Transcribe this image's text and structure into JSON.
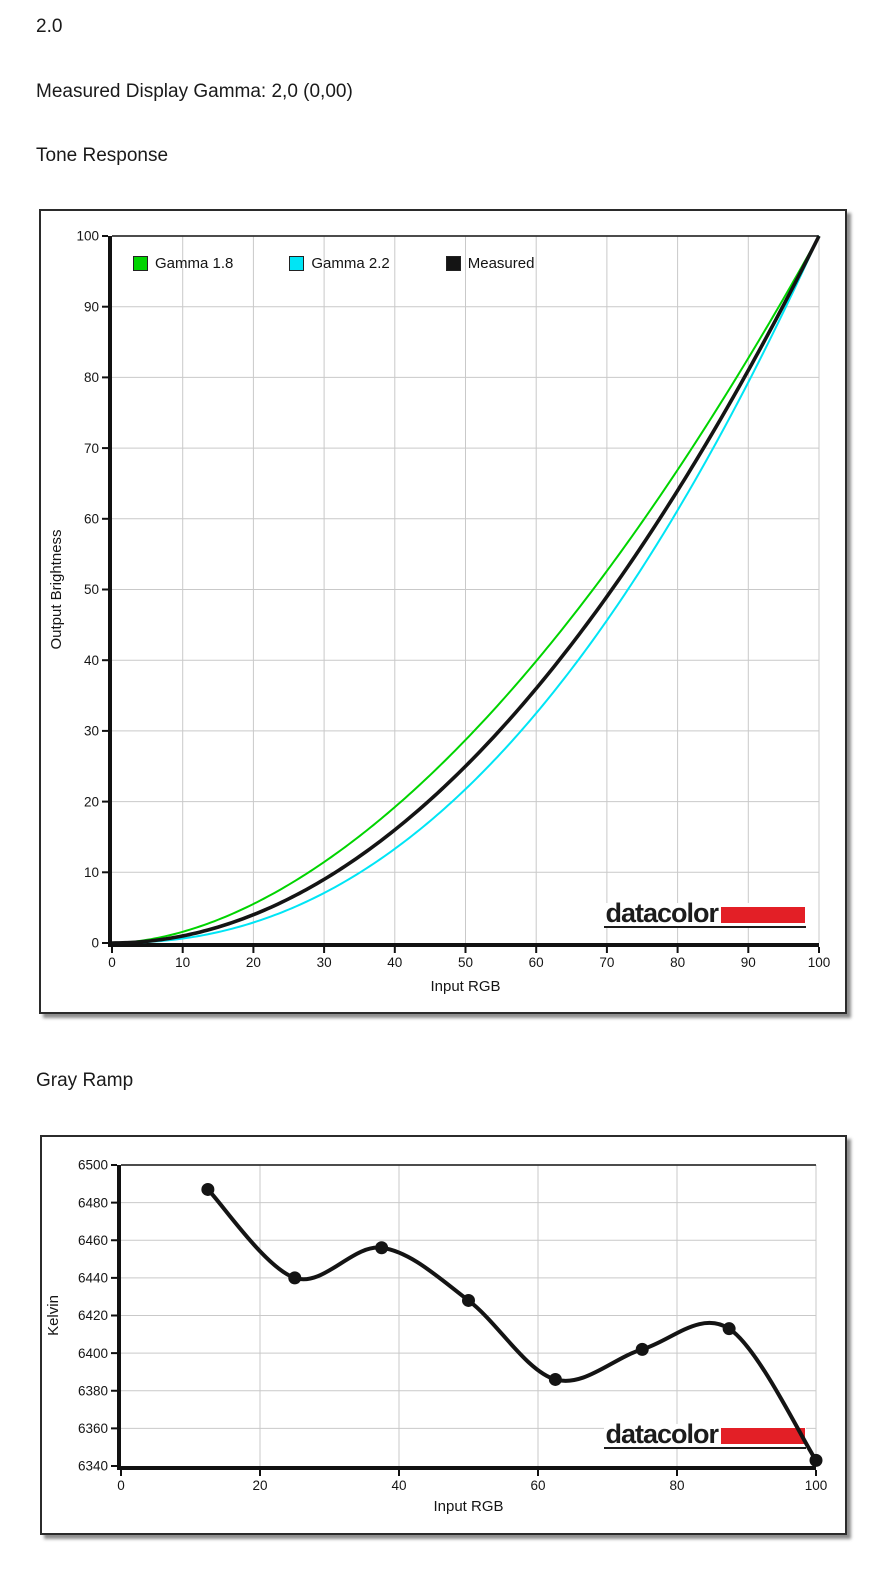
{
  "page": {
    "top_value": "2.0",
    "measured_gamma_line": "Measured Display Gamma: 2,0 (0,00)",
    "section1_heading": "Tone Response",
    "section2_heading": "Gray Ramp"
  },
  "brand": {
    "name": "datacolor",
    "red": "#e31f26",
    "text_color": "#1c1c1c"
  },
  "chart_data": [
    {
      "type": "line",
      "title": "Tone Response",
      "xlabel": "Input RGB",
      "ylabel": "Output Brightness",
      "xlim": [
        0,
        100
      ],
      "ylim": [
        0,
        100
      ],
      "xticks": [
        0,
        10,
        20,
        30,
        40,
        50,
        60,
        70,
        80,
        90,
        100
      ],
      "yticks": [
        0,
        10,
        20,
        30,
        40,
        50,
        60,
        70,
        80,
        90,
        100
      ],
      "grid": true,
      "legend_position": "inside-top-left",
      "series": [
        {
          "name": "Gamma 1.8",
          "color": "#00d400",
          "width": 2,
          "curve": "power",
          "gamma": 1.8,
          "x_step": 10,
          "values": [
            0,
            1.6,
            5.5,
            11.4,
            19.2,
            28.7,
            39.9,
            52.6,
            66.9,
            82.7,
            100
          ]
        },
        {
          "name": "Gamma 2.2",
          "color": "#00e5f5",
          "width": 2,
          "curve": "power",
          "gamma": 2.2,
          "x_step": 10,
          "values": [
            0,
            0.6,
            2.9,
            7.1,
            13.3,
            21.8,
            32.5,
            45.6,
            61.2,
            79.3,
            100
          ]
        },
        {
          "name": "Measured",
          "color": "#141414",
          "width": 3.6,
          "curve": "power",
          "gamma": 2.0,
          "x_step": 10,
          "values": [
            0,
            1,
            4,
            9,
            16,
            25,
            36,
            49,
            64,
            81,
            100
          ]
        }
      ]
    },
    {
      "type": "line",
      "title": "Gray Ramp",
      "xlabel": "Input RGB",
      "ylabel": "Kelvin",
      "xlim": [
        0,
        100
      ],
      "ylim": [
        6340,
        6500
      ],
      "xticks": [
        0,
        20,
        40,
        60,
        80,
        100
      ],
      "yticks": [
        6340,
        6360,
        6380,
        6400,
        6420,
        6440,
        6460,
        6480,
        6500
      ],
      "grid": true,
      "series": [
        {
          "name": "Measured",
          "color": "#141414",
          "width": 4,
          "marker": "circle",
          "marker_r": 6.5,
          "smooth": true,
          "x": [
            12.5,
            25,
            37.5,
            50,
            62.5,
            75,
            87.5,
            100
          ],
          "y": [
            6487,
            6440,
            6456,
            6428,
            6386,
            6402,
            6413,
            6343
          ]
        }
      ]
    }
  ]
}
